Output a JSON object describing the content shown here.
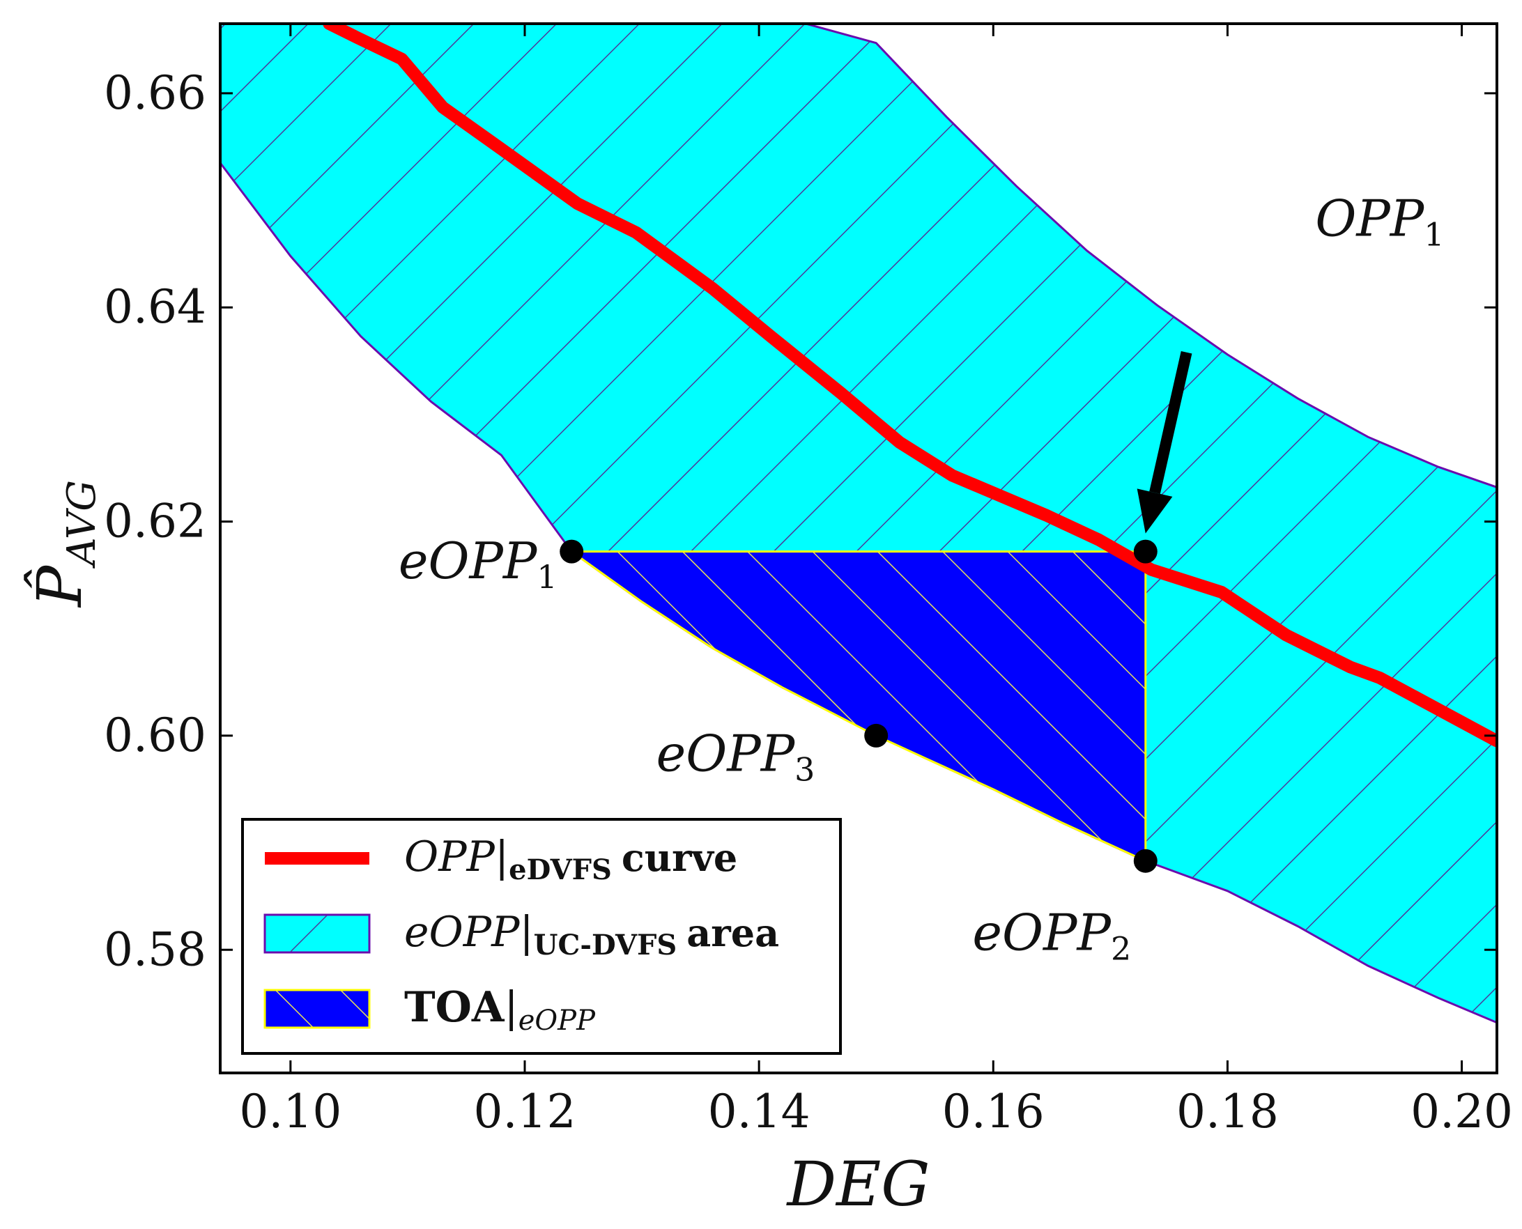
{
  "chart_data": {
    "type": "line",
    "title": "",
    "xlabel": "DEG",
    "ylabel": "P̂",
    "ylabel_sub": "AVG",
    "xlim": [
      0.094,
      0.203
    ],
    "ylim": [
      0.5685,
      0.6665
    ],
    "xticks": [
      0.1,
      0.12,
      0.14,
      0.16,
      0.18,
      0.2
    ],
    "xtick_labels": [
      "0.10",
      "0.12",
      "0.14",
      "0.16",
      "0.18",
      "0.20"
    ],
    "yticks": [
      0.58,
      0.6,
      0.62,
      0.64,
      0.66
    ],
    "ytick_labels": [
      "0.58",
      "0.60",
      "0.62",
      "0.64",
      "0.66"
    ],
    "grid": false,
    "colors": {
      "curve": "#ff0000",
      "area_fill": "#00ffff",
      "area_edge": "#6a0dad",
      "toa_fill": "#0000ff",
      "toa_edge": "#ffff00",
      "marker": "#000000"
    },
    "series": [
      {
        "name": "OPP|eDVFS curve",
        "kind": "line",
        "x": [
          0.1033,
          0.1057,
          0.1095,
          0.113,
          0.118,
          0.1245,
          0.1295,
          0.136,
          0.141,
          0.147,
          0.152,
          0.1565,
          0.1645,
          0.169,
          0.1735,
          0.1795,
          0.185,
          0.1905,
          0.193,
          0.203
        ],
        "y": [
          0.6665,
          0.6652,
          0.6632,
          0.6587,
          0.6548,
          0.6497,
          0.647,
          0.6418,
          0.6373,
          0.632,
          0.6274,
          0.6243,
          0.6206,
          0.6183,
          0.6155,
          0.6134,
          0.6094,
          0.6064,
          0.6054,
          0.5995
        ]
      },
      {
        "name": "eOPP|UC-DVFS area",
        "kind": "area",
        "upper": {
          "x": [
            0.094,
            0.1035,
            0.1085,
            0.114,
            0.12,
            0.126,
            0.132,
            0.138,
            0.144,
            0.15,
            0.156,
            0.162,
            0.168,
            0.174,
            0.18,
            0.186,
            0.192,
            0.198,
            0.203
          ],
          "y": [
            0.6665,
            0.6665,
            0.6665,
            0.6665,
            0.6665,
            0.6665,
            0.6665,
            0.6665,
            0.6665,
            0.6647,
            0.6578,
            0.6513,
            0.6453,
            0.6402,
            0.6356,
            0.6315,
            0.6279,
            0.6251,
            0.6232
          ]
        },
        "lower": {
          "x": [
            0.094,
            0.1,
            0.106,
            0.112,
            0.118,
            0.124,
            0.13,
            0.136,
            0.142,
            0.148,
            0.154,
            0.16,
            0.166,
            0.173,
            0.18,
            0.186,
            0.192,
            0.198,
            0.203
          ],
          "y": [
            0.6535,
            0.6448,
            0.6373,
            0.6312,
            0.6262,
            0.6172,
            0.6125,
            0.6082,
            0.6045,
            0.6012,
            0.598,
            0.595,
            0.5918,
            0.5883,
            0.5855,
            0.5822,
            0.5785,
            0.5755,
            0.5732
          ]
        }
      },
      {
        "name": "TOA|eOPP",
        "kind": "area",
        "polygon": {
          "x": [
            0.124,
            0.173,
            0.173,
            0.166,
            0.16,
            0.154,
            0.15,
            0.142,
            0.136,
            0.13,
            0.124
          ],
          "y": [
            0.6172,
            0.6172,
            0.5883,
            0.5918,
            0.595,
            0.598,
            0.6,
            0.6045,
            0.6082,
            0.6125,
            0.6172
          ]
        }
      }
    ],
    "points": [
      {
        "name": "OPP1",
        "x": 0.173,
        "y": 0.6172
      },
      {
        "name": "eOPP1",
        "x": 0.124,
        "y": 0.6172
      },
      {
        "name": "eOPP2",
        "x": 0.173,
        "y": 0.5883
      },
      {
        "name": "eOPP3",
        "x": 0.15,
        "y": 0.6
      }
    ],
    "annotations": [
      {
        "text": "OPP",
        "sub": "1",
        "key": "OPP1",
        "arrow": true,
        "text_x": 0.193,
        "text_y": 0.6467,
        "arrow_from_x": 0.1765,
        "arrow_from_y": 0.6358
      },
      {
        "text": "eOPP",
        "sub": "1",
        "key": "eOPP1",
        "text_x": 0.116,
        "text_y": 0.6147
      },
      {
        "text": "eOPP",
        "sub": "3",
        "key": "eOPP3",
        "text_x": 0.138,
        "text_y": 0.5967
      },
      {
        "text": "eOPP",
        "sub": "2",
        "key": "eOPP2",
        "text_x": 0.165,
        "text_y": 0.58
      }
    ],
    "legend": {
      "position": "lower-left",
      "entries": [
        {
          "main": "OPP",
          "sub": "eDVFS",
          "suffix": "curve",
          "kind": "line"
        },
        {
          "main": "eOPP",
          "sub": "UC-DVFS",
          "suffix": "area",
          "kind": "area"
        },
        {
          "main": "TOA",
          "sub": "eOPP",
          "suffix": "",
          "kind": "toa"
        }
      ]
    }
  }
}
